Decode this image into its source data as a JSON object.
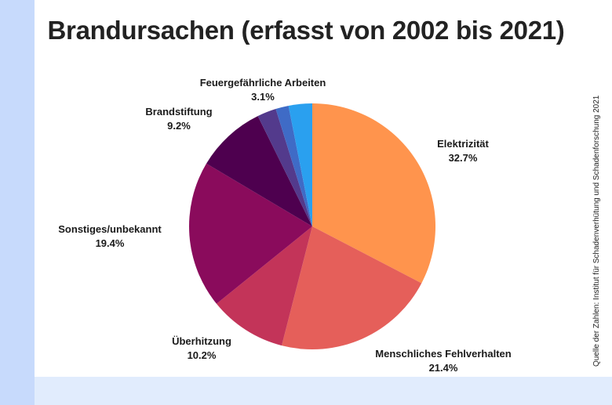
{
  "title": "Brandursachen (erfasst von 2002 bis 2021)",
  "source": "Quelle der Zahlen: Institut für Schadenverhütung und Schadenforschung 2021",
  "chart_data": {
    "type": "pie",
    "title": "Brandursachen (erfasst von 2002 bis 2021)",
    "slices": [
      {
        "label": "Elektrizität",
        "value": 32.7,
        "value_label": "32.7%",
        "color": "#ff944d"
      },
      {
        "label": "Menschliches Fehlverhalten",
        "value": 21.4,
        "value_label": "21.4%",
        "color": "#e55f5a"
      },
      {
        "label": "Überhitzung",
        "value": 10.2,
        "value_label": "10.2%",
        "color": "#c33459"
      },
      {
        "label": "Sonstiges/unbekannt",
        "value": 19.4,
        "value_label": "19.4%",
        "color": "#8a0b5c"
      },
      {
        "label": "Brandstiftung",
        "value": 9.2,
        "value_label": "9.2%",
        "color": "#4e004f"
      },
      {
        "label": "",
        "value": 2.5,
        "value_label": "",
        "color": "#533a8c"
      },
      {
        "label": "",
        "value": 1.7,
        "value_label": "",
        "color": "#3f6bc6"
      },
      {
        "label": "Feuergefährliche Arbeiten",
        "value": 3.1,
        "value_label": "3.1%",
        "color": "#2aa0ef"
      }
    ],
    "start": "12 o'clock",
    "direction": "clockwise"
  }
}
